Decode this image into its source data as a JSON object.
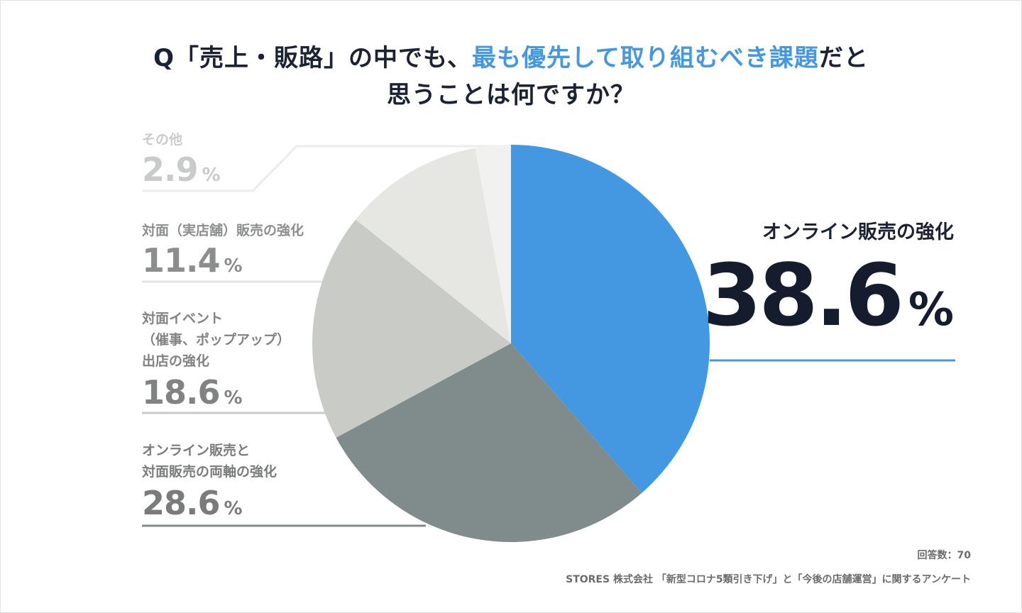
{
  "title": {
    "line1_prefix": "Q「売上・販路」の中でも、",
    "line1_highlight": "最も優先して取り組むべき課題",
    "line1_suffix": "だと",
    "line2": "思うことは何ですか？"
  },
  "chart_data": {
    "type": "pie",
    "title": "Q「売上・販路」の中でも、最も優先して取り組むべき課題だと思うことは何ですか？",
    "start": "12 o'clock",
    "direction": "clockwise",
    "slices": [
      {
        "label": "オンライン販売の強化",
        "value": 38.6,
        "display": "38.6",
        "color": "#4398e1"
      },
      {
        "label": "オンライン販売と\n対面販売の両軸の強化",
        "value": 28.6,
        "display": "28.6",
        "color": "#7f8c8b"
      },
      {
        "label": "対面イベント\n（催事、ポップアップ）\n出店の強化",
        "value": 18.6,
        "display": "18.6",
        "color": "#c8cbc6"
      },
      {
        "label": "対面（実店舗）販売の強化",
        "value": 11.4,
        "display": "11.4",
        "color": "#e6e7e3"
      },
      {
        "label": "その他",
        "value": 2.9,
        "display": "2.9",
        "color": "#f1f1ef"
      }
    ],
    "label_colors": [
      "#1b2233",
      "#7a7c7b",
      "#808382",
      "#8c8e8d",
      "#c9cbca"
    ],
    "leader_colors": [
      "#4398e1",
      "#7f8c8b",
      "#c8cbc6",
      "#e3e4e1",
      "#ececea"
    ],
    "unit": "%"
  },
  "footer": {
    "responses": "回答数：70",
    "source": "STORES 株式会社 「新型コロナ5類引き下げ」と「今後の店舗運営」に関するアンケート"
  }
}
